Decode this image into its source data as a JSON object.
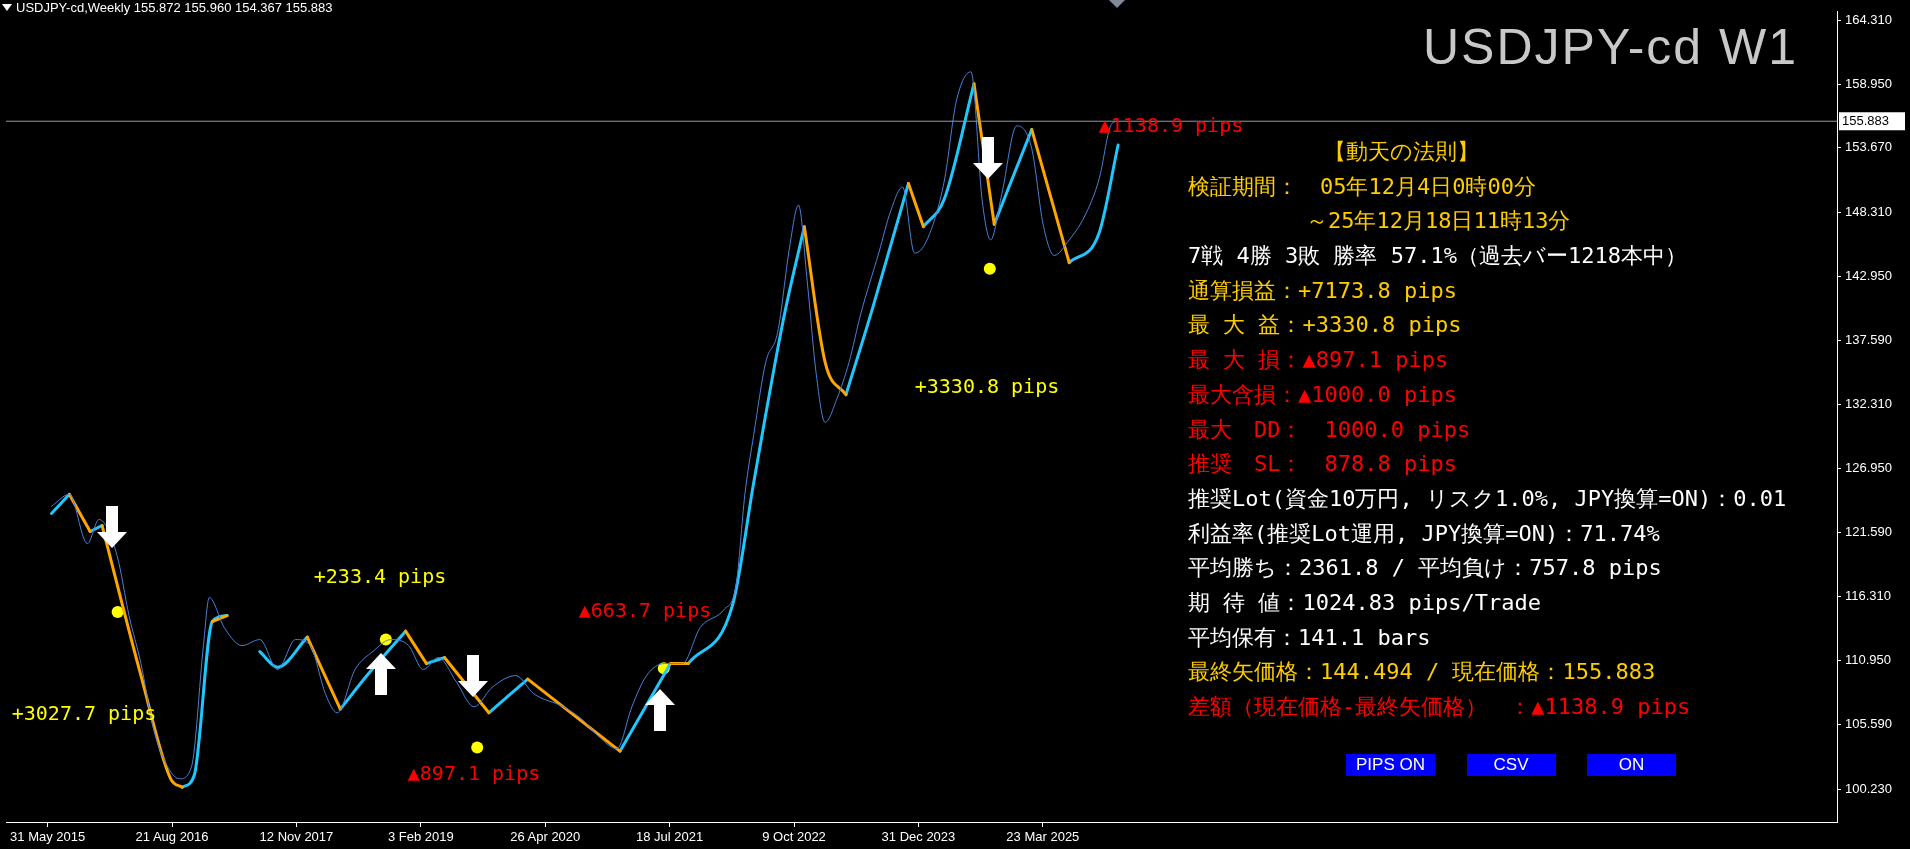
{
  "chart_data": {
    "type": "line",
    "title": "USDJPY-cd,Weekly 155.872 155.960 154.367 155.883",
    "subtitle": "USDJPY-cd W1",
    "xlim": [
      "2015-01-01",
      "2033-01-20"
    ],
    "xticks": [
      {
        "value": "2015-05-31",
        "label": "31 May 2015"
      },
      {
        "value": "2016-08-21",
        "label": "21 Aug 2016"
      },
      {
        "value": "2017-11-12",
        "label": "12 Nov 2017"
      },
      {
        "value": "2019-02-03",
        "label": "3 Feb 2019"
      },
      {
        "value": "2020-04-26",
        "label": "26 Apr 2020"
      },
      {
        "value": "2021-07-18",
        "label": "18 Jul 2021"
      },
      {
        "value": "2022-10-09",
        "label": "9 Oct 2022"
      },
      {
        "value": "2023-12-31",
        "label": "31 Dec 2023"
      },
      {
        "value": "2025-03-23",
        "label": "23 Mar 2025"
      }
    ],
    "ylim": [
      97.5,
      165.0
    ],
    "yticks": [
      {
        "value": 100.23,
        "label": "100.230"
      },
      {
        "value": 105.59,
        "label": "105.590"
      },
      {
        "value": 110.95,
        "label": "110.950"
      },
      {
        "value": 116.31,
        "label": "116.310"
      },
      {
        "value": 121.59,
        "label": "121.590"
      },
      {
        "value": 126.95,
        "label": "126.950"
      },
      {
        "value": 132.31,
        "label": "132.310"
      },
      {
        "value": 137.59,
        "label": "137.590"
      },
      {
        "value": 142.95,
        "label": "142.950"
      },
      {
        "value": 148.31,
        "label": "148.310"
      },
      {
        "value": 153.67,
        "label": "153.670"
      },
      {
        "value": 158.95,
        "label": "158.950"
      },
      {
        "value": 164.31,
        "label": "164.310"
      }
    ],
    "grid": false,
    "legend": false,
    "ref_lines": [
      {
        "axis": "y",
        "value": 155.883,
        "label": "155.883",
        "color": "#8a9bb0"
      }
    ],
    "series": [
      {
        "color": "#4a7fd8",
        "x": [
          "2015-06-14",
          "2015-08-17",
          "2015-10-21",
          "2015-12-02",
          "2016-02-05",
          "2016-03-19",
          "2016-05-01",
          "2016-06-12",
          "2016-07-25",
          "2016-09-17",
          "2016-10-30",
          "2016-12-12",
          "2017-01-02",
          "2017-02-25",
          "2017-04-30",
          "2017-07-03",
          "2017-09-05",
          "2017-11-09",
          "2018-01-01",
          "2018-02-24",
          "2018-04-08",
          "2018-06-11",
          "2018-08-14",
          "2018-10-18",
          "2018-12-21",
          "2019-02-12",
          "2019-04-07",
          "2019-06-10",
          "2019-08-14",
          "2019-10-17",
          "2020-01-11",
          "2020-03-15",
          "2020-06-30",
          "2020-09-03",
          "2020-11-06",
          "2021-01-09",
          "2021-03-04",
          "2021-04-26",
          "2021-06-29",
          "2021-09-02",
          "2021-11-05",
          "2022-01-30",
          "2022-03-14",
          "2022-04-15",
          "2022-05-17",
          "2022-06-29",
          "2022-08-11",
          "2022-09-23",
          "2022-10-25",
          "2022-11-26",
          "2022-12-28",
          "2023-01-29",
          "2023-03-13",
          "2023-04-25",
          "2023-06-07",
          "2023-08-10",
          "2023-09-22",
          "2023-11-04",
          "2023-12-17",
          "2024-01-29",
          "2024-04-02",
          "2024-05-15",
          "2024-07-07",
          "2024-08-17",
          "2024-09-16",
          "2024-10-26",
          "2024-12-19",
          "2025-02-11",
          "2025-03-24",
          "2025-05-03",
          "2025-06-26",
          "2025-08-19",
          "2025-10-12",
          "2025-11-22",
          "2025-12-14"
        ],
        "values": [
          123.8,
          124.8,
          120.7,
          122.7,
          119.7,
          114.7,
          110.7,
          105.6,
          102.6,
          101.1,
          102.1,
          112.2,
          116.2,
          113.7,
          112.2,
          112.7,
          110.2,
          112.7,
          112.2,
          108.2,
          106.6,
          110.2,
          111.7,
          112.7,
          112.2,
          110.2,
          111.2,
          109.2,
          107.1,
          108.7,
          109.7,
          108.2,
          107.1,
          106.1,
          104.6,
          103.6,
          107.1,
          109.7,
          110.7,
          110.7,
          113.7,
          115.2,
          117.2,
          124.8,
          129.8,
          135.8,
          138.3,
          145.4,
          148.9,
          142.4,
          134.8,
          130.8,
          132.8,
          135.8,
          139.9,
          144.9,
          148.4,
          150.4,
          144.9,
          145.9,
          150.9,
          157.5,
          160.0,
          149.2,
          146.0,
          149.8,
          155.5,
          153.6,
          147.3,
          144.7,
          146.0,
          147.9,
          151.1,
          155.5,
          155.9
        ]
      },
      {
        "color": "#ffa500",
        "x": [
          "2015-08-17",
          "2015-10-31",
          "2015-11-15",
          "2015-12-13",
          "2016-05-01",
          "2016-08-16",
          "2016-09-27",
          "2016-10-01",
          "2017-01-13",
          "2017-03-07",
          "2017-03-10",
          "2017-12-21",
          "2018-04-19",
          "2018-04-20",
          "2018-12-10",
          "2019-02-23",
          "2019-02-25",
          "2019-04-29",
          "2019-10-06",
          "2019-10-10",
          "2020-02-23",
          "2021-01-20",
          "2021-01-25",
          "2021-07-21",
          "2021-09-23",
          "2021-09-25",
          "2022-11-15",
          "2023-01-29",
          "2023-04-14",
          "2023-04-20",
          "2023-11-25",
          "2024-01-18",
          "2024-01-20",
          "2024-07-18",
          "2024-09-29",
          "2024-10-01",
          "2025-02-11",
          "2025-06-26"
        ],
        "values": [
          124.8,
          121.7,
          null,
          122.2,
          109.7,
          101.1,
          100.4,
          null,
          114.2,
          114.7,
          null,
          112.9,
          106.9,
          null,
          113.4,
          110.7,
          null,
          111.2,
          106.6,
          null,
          109.4,
          103.4,
          null,
          110.7,
          110.7,
          null,
          147.1,
          135.8,
          133.1,
          null,
          150.7,
          147.1,
          null,
          159.0,
          147.3,
          null,
          155.2,
          144.1
        ]
      },
      {
        "color": "#1ec8ff",
        "x": [
          "2015-06-14",
          "2015-08-17",
          "2015-09-01",
          "2015-10-31",
          "2015-12-13",
          "2015-12-20",
          "2016-09-27",
          "2016-11-09",
          "2017-01-13",
          "2017-03-07",
          "2017-03-10",
          "2017-07-03",
          "2017-09-05",
          "2017-12-21",
          "2017-12-25",
          "2018-04-19",
          "2018-07-24",
          "2018-12-10",
          "2018-12-15",
          "2019-02-23",
          "2019-04-29",
          "2019-05-01",
          "2019-10-06",
          "2020-02-23",
          "2020-02-25",
          "2021-01-20",
          "2021-07-21",
          "2021-07-25",
          "2021-09-23",
          "2022-03-03",
          "2022-05-17",
          "2022-09-01",
          "2022-11-15",
          "2022-11-20",
          "2023-04-14",
          "2023-07-20",
          "2023-11-25",
          "2023-11-30",
          "2024-01-18",
          "2024-04-02",
          "2024-07-18",
          "2024-07-20",
          "2024-09-29",
          "2025-02-11",
          "2025-02-15",
          "2025-06-26",
          "2025-10-12",
          "2025-12-19"
        ],
        "values": [
          123.2,
          124.8,
          null,
          121.7,
          122.2,
          null,
          100.4,
          101.4,
          114.2,
          114.7,
          null,
          111.7,
          110.4,
          112.9,
          null,
          106.9,
          109.7,
          113.4,
          null,
          110.7,
          111.2,
          null,
          106.6,
          109.4,
          null,
          103.4,
          110.7,
          null,
          110.7,
          115.7,
          125.8,
          139.4,
          147.1,
          null,
          133.1,
          140.4,
          150.7,
          null,
          147.1,
          149.4,
          159.0,
          null,
          147.3,
          155.2,
          null,
          144.1,
          146.6,
          153.9
        ]
      },
      {
        "type": "scatter",
        "color": "#ffff00",
        "marker": "circle",
        "x": [
          "2016-02-07",
          "2018-09-30",
          "2019-08-25",
          "2021-06-27",
          "2024-09-13"
        ],
        "values": [
          115.0,
          112.7,
          103.7,
          110.3,
          143.6
        ]
      }
    ],
    "annotations": [
      "+3027.7 pips",
      "+233.4 pips",
      "▲897.1 pips",
      "▲663.7 pips",
      "+3330.8 pips",
      "▲1138.9 pips",
      "【動天の法則】",
      "検証期間：　05年12月4日0時00分",
      "～25年12月18日11時13分",
      "7戦 4勝 3敗 勝率 57.1%（過去バー1218本中）",
      "通算損益：+7173.8 pips",
      "最 大 益：+3330.8 pips",
      "最 大 損：▲897.1 pips",
      "最大含損：▲1000.0 pips",
      "最大　DD：　1000.0 pips",
      "推奨　SL：　878.8 pips",
      "推奨Lot(資金10万円, リスク1.0%, JPY換算=ON)：0.01",
      "利益率(推奨Lot運用, JPY換算=ON)：71.74%",
      "平均勝ち：2361.8 / 平均負け：757.8 pips",
      "期 待 値：1024.83 pips/Trade",
      "平均保有：141.1 bars",
      "最終矢価格：144.494 / 現在価格：155.883",
      "差額（現在価格-最終矢価格）　：▲1138.9 pips",
      "PIPS ON",
      "CSV",
      "ON"
    ]
  }
}
